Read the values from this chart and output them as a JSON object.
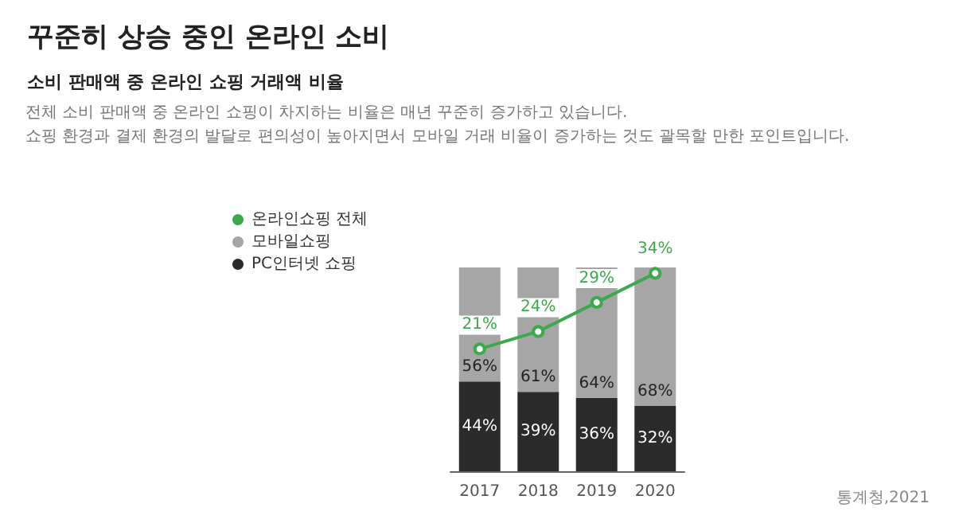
{
  "chart_data": {
    "type": "bar",
    "title": "꾸준히 상승 중인 온라인 소비",
    "subtitle": "소비 판매액 중 온라인 쇼핑 거래액 비율",
    "annotations": [
      "전체 소비 판매액 중 온라인 쇼핑이 차지하는 비율은 매년 꾸준히 증가하고 있습니다.",
      "쇼핑 환경과 결제 환경의 발달로 편의성이 높아지면서 모바일 거래 비율이 증가하는 것도 괄목할 만한 포인트입니다.",
      "통계청,2021"
    ],
    "categories": [
      "2017",
      "2018",
      "2019",
      "2020"
    ],
    "stacked": true,
    "legend": "top left",
    "marker": "circle",
    "tick_labels": "x",
    "series": [
      {
        "name": "온라인쇼핑 전체",
        "type": "line",
        "axis": "y2",
        "color": "#3aaa4a",
        "values": [
          21,
          24,
          29,
          34
        ],
        "value_labels": [
          "21%",
          "24%",
          "29%",
          "34%"
        ]
      },
      {
        "name": "PC인터넷 쇼핑",
        "color": "#2b2b2b",
        "values": [
          44,
          39,
          36,
          32
        ],
        "value_labels": [
          "44%",
          "39%",
          "36%",
          "32%"
        ]
      },
      {
        "name": "모바일쇼핑",
        "color": "#a6a6a6",
        "values": [
          56,
          61,
          64,
          68
        ],
        "value_labels": [
          "56%",
          "61%",
          "64%",
          "68%"
        ]
      }
    ]
  }
}
